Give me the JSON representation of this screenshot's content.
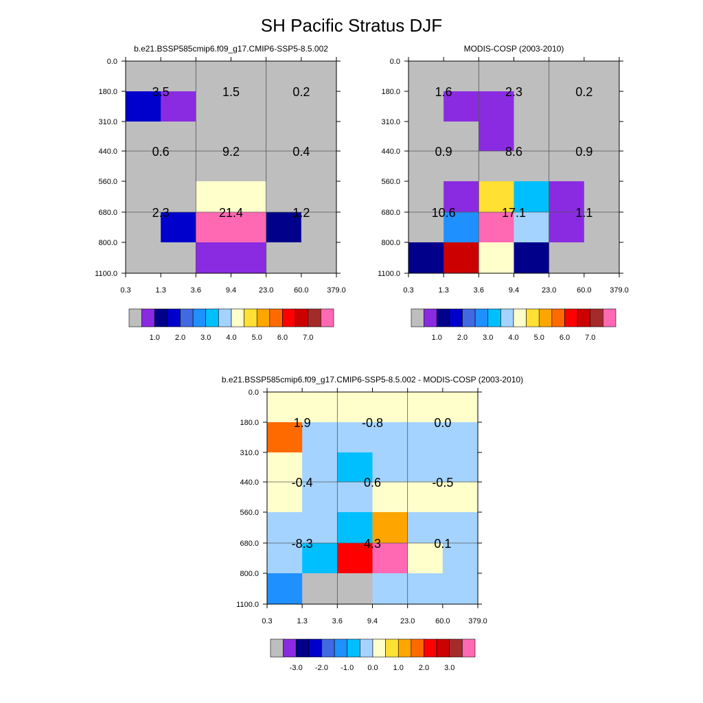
{
  "title": "SH Pacific Stratus DJF",
  "chart_data": [
    {
      "type": "heatmap",
      "title": "b.e21.BSSP585cmip6.f09_g17.CMIP6-SSP5-8.5.002",
      "x_ticks": [
        "0.3",
        "1.3",
        "3.6",
        "9.4",
        "23.0",
        "60.0",
        "379.0"
      ],
      "y_ticks": [
        "0.0",
        "180.0",
        "310.0",
        "440.0",
        "560.0",
        "680.0",
        "800.0",
        "1100.0"
      ],
      "colors": [
        "#BEBEBE",
        "#8A2BE2",
        "#00008B",
        "#0000CD",
        "#4169E1",
        "#1E90FF",
        "#00BFFF",
        "#A4D3FF",
        "#FFFFCC",
        "#FFE033",
        "#FFA500",
        "#FF6A00",
        "#FF0000",
        "#CD0000",
        "#A52A2A",
        "#FF69B4"
      ],
      "colorbar_labels": [
        "1.0",
        "2.0",
        "3.0",
        "4.0",
        "5.0",
        "6.0",
        "7.0"
      ],
      "cells": [
        [
          0,
          0,
          0,
          0,
          0,
          0
        ],
        [
          3,
          1,
          0,
          0,
          0,
          0
        ],
        [
          0,
          0,
          0,
          0,
          0,
          0
        ],
        [
          0,
          0,
          0,
          0,
          0,
          0
        ],
        [
          0,
          0,
          8,
          8,
          0,
          0
        ],
        [
          0,
          3,
          15,
          15,
          2,
          0
        ],
        [
          0,
          0,
          1,
          1,
          0,
          0
        ]
      ],
      "group_values": [
        {
          "col": 0,
          "row": 1,
          "value": "3.5"
        },
        {
          "col": 1,
          "row": 1,
          "value": "1.5"
        },
        {
          "col": 2,
          "row": 1,
          "value": "0.2"
        },
        {
          "col": 0,
          "row": 2,
          "value": "0.6"
        },
        {
          "col": 1,
          "row": 2,
          "value": "9.2"
        },
        {
          "col": 2,
          "row": 2,
          "value": "0.4"
        },
        {
          "col": 0,
          "row": 3,
          "value": "2.3"
        },
        {
          "col": 1,
          "row": 3,
          "value": "21.4"
        },
        {
          "col": 2,
          "row": 3,
          "value": "1.2"
        }
      ]
    },
    {
      "type": "heatmap",
      "title": "MODIS-COSP (2003-2010)",
      "x_ticks": [
        "0.3",
        "1.3",
        "3.6",
        "9.4",
        "23.0",
        "60.0",
        "379.0"
      ],
      "y_ticks": [
        "0.0",
        "180.0",
        "310.0",
        "440.0",
        "560.0",
        "680.0",
        "800.0",
        "1100.0"
      ],
      "colors": [
        "#BEBEBE",
        "#8A2BE2",
        "#00008B",
        "#0000CD",
        "#4169E1",
        "#1E90FF",
        "#00BFFF",
        "#A4D3FF",
        "#FFFFCC",
        "#FFE033",
        "#FFA500",
        "#FF6A00",
        "#FF0000",
        "#CD0000",
        "#A52A2A",
        "#FF69B4"
      ],
      "colorbar_labels": [
        "1.0",
        "2.0",
        "3.0",
        "4.0",
        "5.0",
        "6.0",
        "7.0"
      ],
      "cells": [
        [
          0,
          0,
          0,
          0,
          0,
          0
        ],
        [
          0,
          1,
          1,
          0,
          0,
          0
        ],
        [
          0,
          0,
          1,
          0,
          0,
          0
        ],
        [
          0,
          0,
          0,
          0,
          0,
          0
        ],
        [
          0,
          1,
          9,
          6,
          1,
          0
        ],
        [
          0,
          5,
          15,
          7,
          1,
          0
        ],
        [
          2,
          13,
          8,
          2,
          0,
          0
        ]
      ],
      "group_values": [
        {
          "col": 0,
          "row": 1,
          "value": "1.6"
        },
        {
          "col": 1,
          "row": 1,
          "value": "2.3"
        },
        {
          "col": 2,
          "row": 1,
          "value": "0.2"
        },
        {
          "col": 0,
          "row": 2,
          "value": "0.9"
        },
        {
          "col": 1,
          "row": 2,
          "value": "8.6"
        },
        {
          "col": 2,
          "row": 2,
          "value": "0.9"
        },
        {
          "col": 0,
          "row": 3,
          "value": "10.6"
        },
        {
          "col": 1,
          "row": 3,
          "value": "17.1"
        },
        {
          "col": 2,
          "row": 3,
          "value": "1.1"
        }
      ]
    },
    {
      "type": "heatmap",
      "title": "b.e21.BSSP585cmip6.f09_g17.CMIP6-SSP5-8.5.002 - MODIS-COSP (2003-2010)",
      "x_ticks": [
        "0.3",
        "1.3",
        "3.6",
        "9.4",
        "23.0",
        "60.0",
        "379.0"
      ],
      "y_ticks": [
        "0.0",
        "180.0",
        "310.0",
        "440.0",
        "560.0",
        "680.0",
        "800.0",
        "1100.0"
      ],
      "colors": [
        "#BEBEBE",
        "#8A2BE2",
        "#00008B",
        "#0000CD",
        "#4169E1",
        "#1E90FF",
        "#00BFFF",
        "#A4D3FF",
        "#FFFFCC",
        "#FFE033",
        "#FFA500",
        "#FF6A00",
        "#FF0000",
        "#CD0000",
        "#A52A2A",
        "#FF69B4"
      ],
      "colorbar_labels": [
        "-3.0",
        "-2.0",
        "-1.0",
        "0.0",
        "1.0",
        "2.0",
        "3.0"
      ],
      "cells": [
        [
          8,
          8,
          8,
          8,
          8,
          8
        ],
        [
          11,
          7,
          7,
          7,
          7,
          7
        ],
        [
          8,
          7,
          6,
          7,
          7,
          7
        ],
        [
          8,
          7,
          7,
          8,
          8,
          8
        ],
        [
          7,
          7,
          6,
          10,
          7,
          7
        ],
        [
          7,
          6,
          12,
          15,
          8,
          7
        ],
        [
          5,
          0,
          0,
          7,
          7,
          7
        ]
      ],
      "group_values": [
        {
          "col": 0,
          "row": 1,
          "value": "1.9"
        },
        {
          "col": 1,
          "row": 1,
          "value": "-0.8"
        },
        {
          "col": 2,
          "row": 1,
          "value": "0.0"
        },
        {
          "col": 0,
          "row": 2,
          "value": "-0.4"
        },
        {
          "col": 1,
          "row": 2,
          "value": "0.6"
        },
        {
          "col": 2,
          "row": 2,
          "value": "-0.5"
        },
        {
          "col": 0,
          "row": 3,
          "value": "-8.3"
        },
        {
          "col": 1,
          "row": 3,
          "value": "4.3"
        },
        {
          "col": 2,
          "row": 3,
          "value": "0.1"
        }
      ]
    }
  ]
}
